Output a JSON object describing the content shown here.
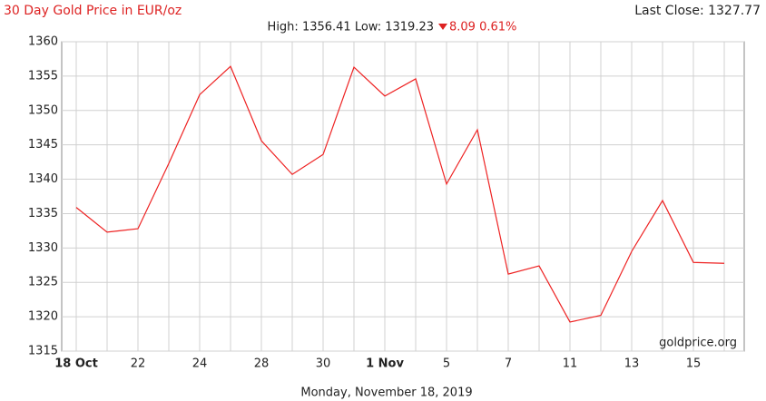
{
  "chart_data": {
    "type": "line",
    "title": "30 Day Gold Price in EUR/oz",
    "last_close": "Last Close: 1327.77",
    "high_low": "High: 1356.41 Low: 1319.23",
    "change": "8.09 0.61%",
    "date": "Monday, November 18, 2019",
    "source": "goldprice.org",
    "categories": [
      "18 Oct",
      null,
      "22",
      null,
      "24",
      null,
      "28",
      null,
      "30",
      null,
      "1 Nov",
      null,
      "5",
      null,
      "7",
      null,
      "11",
      null,
      "13",
      null,
      "15",
      null
    ],
    "series": [
      {
        "name": "Gold Price EUR/oz",
        "color": "#ee2222",
        "values": [
          1335.9,
          1332.3,
          1332.8,
          1342.3,
          1352.3,
          1356.41,
          1345.6,
          1340.7,
          1343.6,
          1356.3,
          1352.1,
          1354.6,
          1339.3,
          1347.2,
          1326.2,
          1327.4,
          1319.23,
          1320.2,
          1329.5,
          1336.9,
          1327.9,
          1327.77
        ]
      }
    ],
    "ylim": [
      1315,
      1360
    ],
    "yticks": [
      1315,
      1320,
      1325,
      1330,
      1335,
      1340,
      1345,
      1350,
      1355,
      1360
    ],
    "grid": true
  }
}
